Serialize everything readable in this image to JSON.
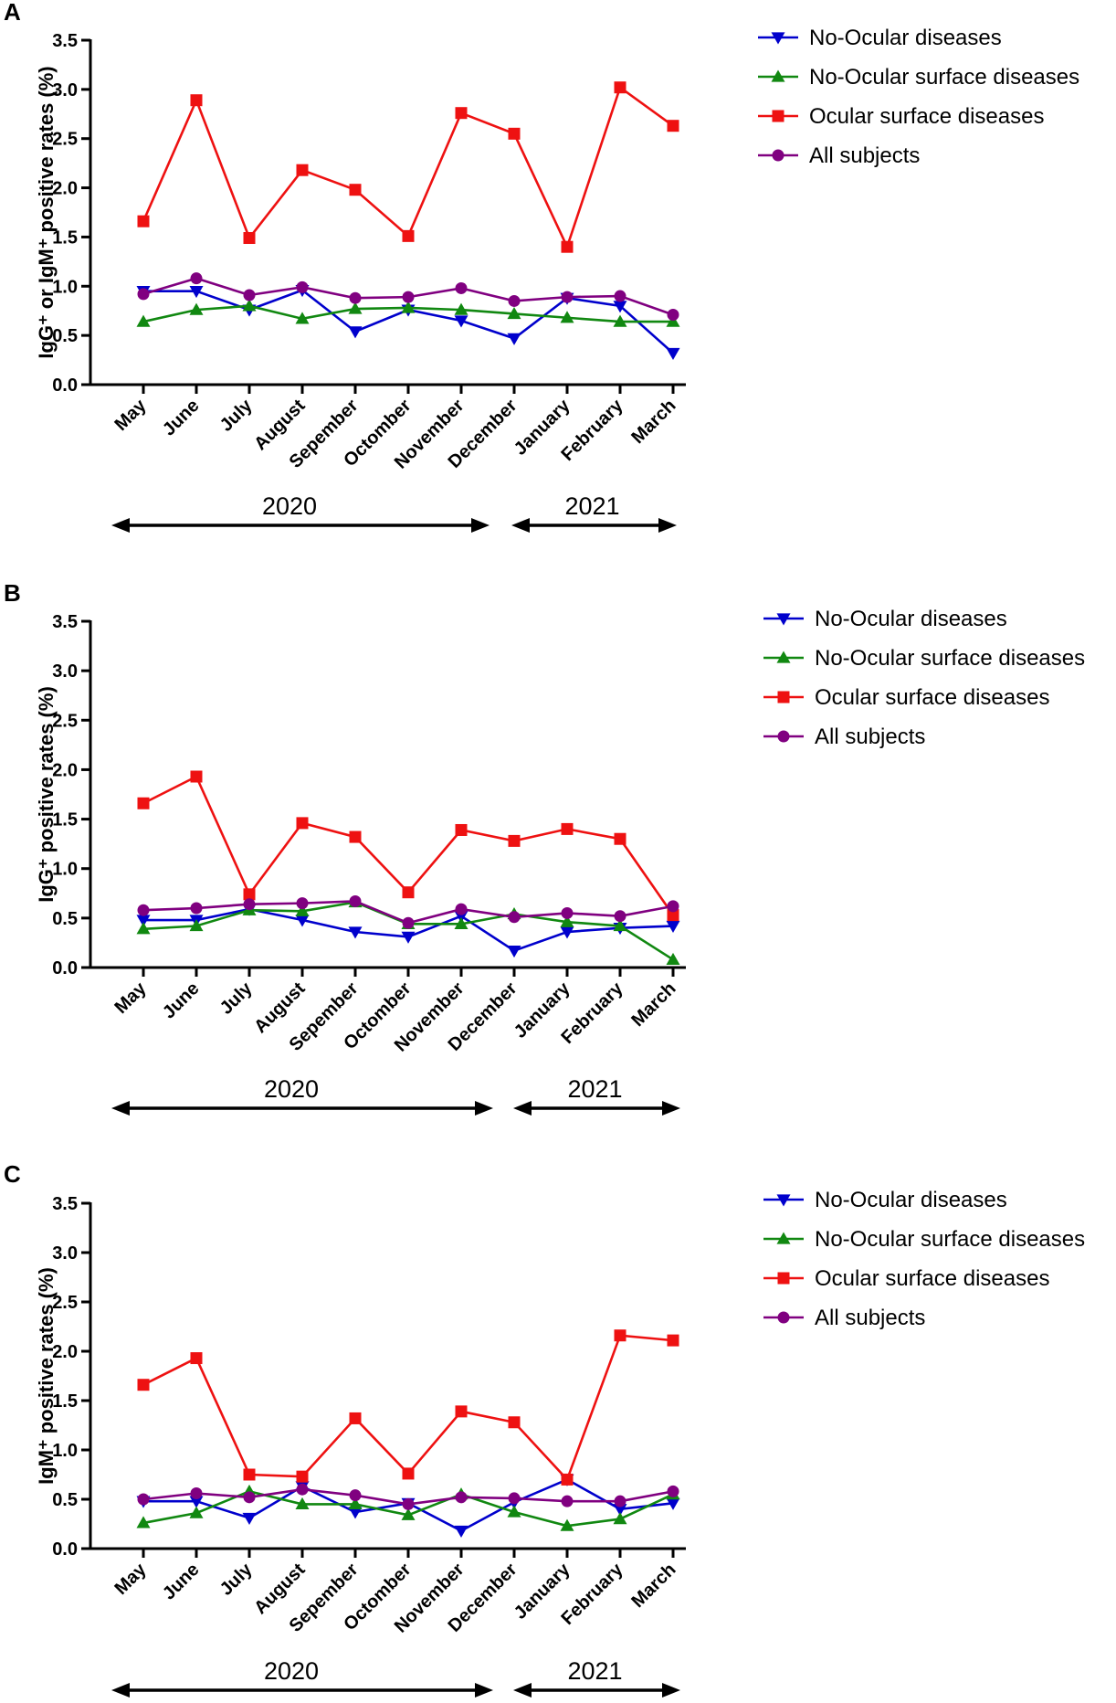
{
  "chart_data": [
    {
      "panel": "A",
      "type": "line",
      "categories": [
        "May",
        "June",
        "July",
        "August",
        "Sepember",
        "Octomber",
        "November",
        "December",
        "January",
        "February",
        "March"
      ],
      "ylabel": "IgG⁺ or IgM⁺ positive rates (%)",
      "ylim": [
        0,
        3.5
      ],
      "yticks": [
        "0.0",
        "0.5",
        "1.0",
        "1.5",
        "2.0",
        "2.5",
        "3.0",
        "3.5"
      ],
      "years": [
        {
          "label": "2020",
          "from": "May",
          "to": "December"
        },
        {
          "label": "2021",
          "from": "January",
          "to": "March"
        }
      ],
      "series": [
        {
          "name": "No-Ocular diseases",
          "color": "#0000cc",
          "marker": "triangle-down",
          "values": [
            0.95,
            0.95,
            0.76,
            0.96,
            0.54,
            0.76,
            0.65,
            0.47,
            0.88,
            0.8,
            0.32
          ]
        },
        {
          "name": "No-Ocular surface diseases",
          "color": "#118811",
          "marker": "triangle-up",
          "values": [
            0.64,
            0.76,
            0.8,
            0.67,
            0.77,
            0.78,
            0.76,
            0.72,
            0.68,
            0.64,
            0.64
          ]
        },
        {
          "name": "Ocular surface diseases",
          "color": "#ee1111",
          "marker": "square",
          "values": [
            1.66,
            2.89,
            1.49,
            2.18,
            1.98,
            1.51,
            2.76,
            2.55,
            1.4,
            3.02,
            2.63
          ]
        },
        {
          "name": "All subjects",
          "color": "#800080",
          "marker": "circle",
          "values": [
            0.92,
            1.08,
            0.91,
            0.99,
            0.88,
            0.89,
            0.98,
            0.85,
            0.89,
            0.9,
            0.71
          ]
        }
      ]
    },
    {
      "panel": "B",
      "type": "line",
      "categories": [
        "May",
        "June",
        "July",
        "August",
        "Sepember",
        "Octomber",
        "November",
        "December",
        "January",
        "February",
        "March"
      ],
      "ylabel": "IgG⁺ positive rates (%)",
      "ylim": [
        0,
        3.5
      ],
      "yticks": [
        "0.0",
        "0.5",
        "1.0",
        "1.5",
        "2.0",
        "2.5",
        "3.0",
        "3.5"
      ],
      "years": [
        {
          "label": "2020",
          "from": "May",
          "to": "December"
        },
        {
          "label": "2021",
          "from": "January",
          "to": "March"
        }
      ],
      "series": [
        {
          "name": "No-Ocular diseases",
          "color": "#0000cc",
          "marker": "triangle-down",
          "values": [
            0.48,
            0.48,
            0.59,
            0.48,
            0.36,
            0.31,
            0.52,
            0.17,
            0.36,
            0.4,
            0.42
          ]
        },
        {
          "name": "No-Ocular surface diseases",
          "color": "#118811",
          "marker": "triangle-up",
          "values": [
            0.39,
            0.42,
            0.58,
            0.57,
            0.66,
            0.44,
            0.44,
            0.54,
            0.46,
            0.42,
            0.08
          ]
        },
        {
          "name": "Ocular surface diseases",
          "color": "#ee1111",
          "marker": "square",
          "values": [
            1.66,
            1.93,
            0.74,
            1.46,
            1.32,
            0.76,
            1.39,
            1.28,
            1.4,
            1.3,
            0.53
          ]
        },
        {
          "name": "All subjects",
          "color": "#800080",
          "marker": "circle",
          "values": [
            0.58,
            0.6,
            0.64,
            0.65,
            0.67,
            0.45,
            0.59,
            0.51,
            0.55,
            0.52,
            0.62
          ]
        }
      ]
    },
    {
      "panel": "C",
      "type": "line",
      "categories": [
        "May",
        "June",
        "July",
        "August",
        "Sepember",
        "Octomber",
        "November",
        "December",
        "January",
        "February",
        "March"
      ],
      "ylabel": "IgM⁺ positive rates (%)",
      "ylim": [
        0,
        3.5
      ],
      "yticks": [
        "0.0",
        "0.5",
        "1.0",
        "1.5",
        "2.0",
        "2.5",
        "3.0",
        "3.5"
      ],
      "years": [
        {
          "label": "2020",
          "from": "May",
          "to": "December"
        },
        {
          "label": "2021",
          "from": "January",
          "to": "March"
        }
      ],
      "series": [
        {
          "name": "No-Ocular diseases",
          "color": "#0000cc",
          "marker": "triangle-down",
          "values": [
            0.48,
            0.48,
            0.31,
            0.63,
            0.37,
            0.46,
            0.18,
            0.47,
            0.7,
            0.4,
            0.46
          ]
        },
        {
          "name": "No-Ocular surface diseases",
          "color": "#118811",
          "marker": "triangle-up",
          "values": [
            0.26,
            0.36,
            0.58,
            0.45,
            0.45,
            0.34,
            0.55,
            0.37,
            0.23,
            0.3,
            0.55
          ]
        },
        {
          "name": "Ocular surface diseases",
          "color": "#ee1111",
          "marker": "square",
          "values": [
            1.66,
            1.93,
            0.75,
            0.73,
            1.32,
            0.76,
            1.39,
            1.28,
            0.7,
            2.16,
            2.11
          ]
        },
        {
          "name": "All subjects",
          "color": "#800080",
          "marker": "circle",
          "values": [
            0.5,
            0.56,
            0.52,
            0.6,
            0.54,
            0.45,
            0.52,
            0.51,
            0.48,
            0.48,
            0.58
          ]
        }
      ]
    }
  ]
}
